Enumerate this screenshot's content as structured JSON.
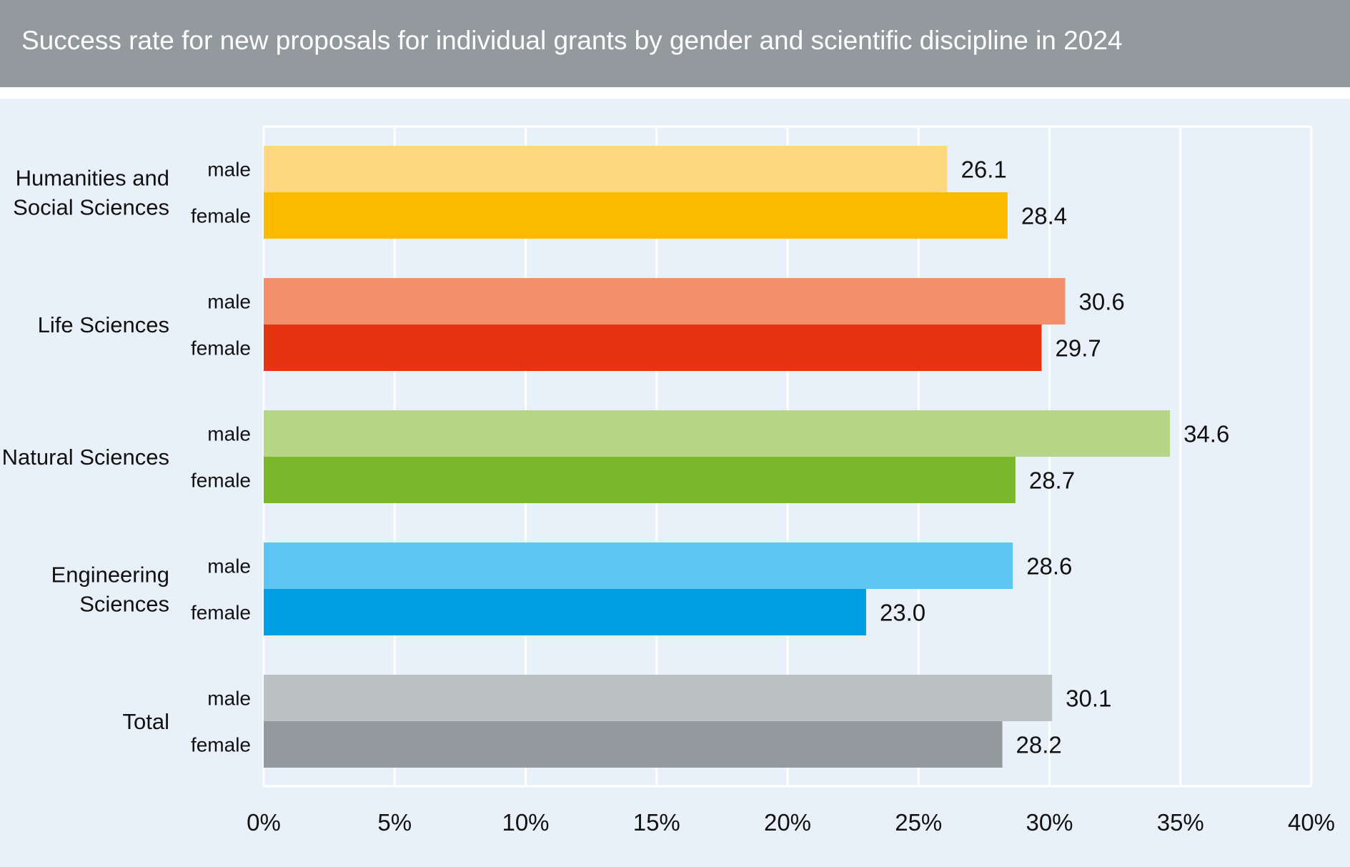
{
  "header": {
    "title": "Success rate for new proposals for individual grants by gender and scientific discipline in 2024"
  },
  "chart_data": {
    "type": "bar",
    "orientation": "horizontal",
    "title": "Success rate for new proposals for individual grants by gender and scientific discipline in 2024",
    "xlabel": "",
    "ylabel": "",
    "xlim": [
      0,
      40
    ],
    "x_ticks": [
      "0%",
      "5%",
      "10%",
      "15%",
      "20%",
      "25%",
      "30%",
      "35%",
      "40%"
    ],
    "grid": true,
    "categories": [
      {
        "name": [
          "Humanities and",
          "Social Sciences"
        ],
        "bars": [
          {
            "label": "male",
            "value": 26.1,
            "display": "26.1",
            "color": "#ffd780"
          },
          {
            "label": "female",
            "value": 28.4,
            "display": "28.4",
            "color": "#fdbb00"
          }
        ]
      },
      {
        "name": [
          "Life Sciences"
        ],
        "bars": [
          {
            "label": "male",
            "value": 30.6,
            "display": "30.6",
            "color": "#f38f6b"
          },
          {
            "label": "female",
            "value": 29.7,
            "display": "29.7",
            "color": "#e63312"
          }
        ]
      },
      {
        "name": [
          "Natural Sciences"
        ],
        "bars": [
          {
            "label": "male",
            "value": 34.6,
            "display": "34.6",
            "color": "#b6d685"
          },
          {
            "label": "female",
            "value": 28.7,
            "display": "28.7",
            "color": "#78b82a"
          }
        ]
      },
      {
        "name": [
          "Engineering",
          "Sciences"
        ],
        "bars": [
          {
            "label": "male",
            "value": 28.6,
            "display": "28.6",
            "color": "#5ec6f4"
          },
          {
            "label": "female",
            "value": 23.0,
            "display": "23.0",
            "color": "#009fe3"
          }
        ]
      },
      {
        "name": [
          "Total"
        ],
        "bars": [
          {
            "label": "male",
            "value": 30.1,
            "display": "30.1",
            "color": "#bcc1c4"
          },
          {
            "label": "female",
            "value": 28.2,
            "display": "28.2",
            "color": "#939a9d"
          }
        ]
      }
    ]
  }
}
